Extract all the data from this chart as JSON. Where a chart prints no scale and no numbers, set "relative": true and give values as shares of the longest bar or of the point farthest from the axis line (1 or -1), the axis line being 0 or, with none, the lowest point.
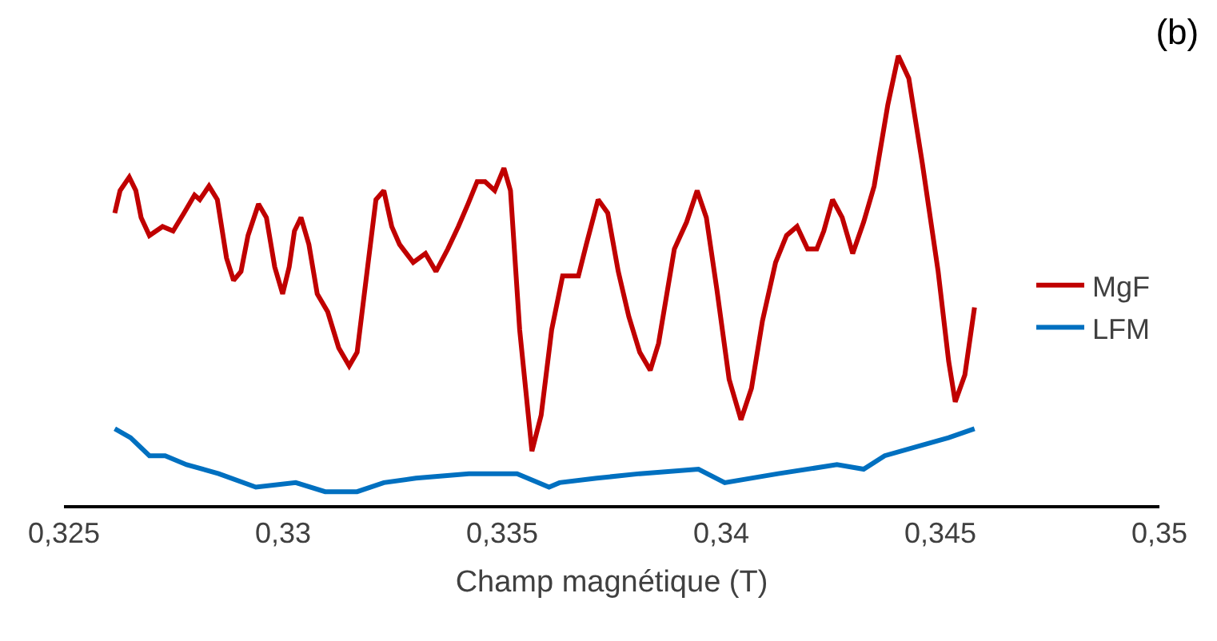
{
  "chart_data": {
    "type": "line",
    "title": "(b)",
    "xlabel": "Champ magnétique (T)",
    "relative": true,
    "legend": "right",
    "marker": "none",
    "line_style": "solid",
    "xlim": [
      0.325,
      0.35
    ],
    "xticks": [
      {
        "value": 0.325,
        "label": "0,325"
      },
      {
        "value": 0.33,
        "label": "0,33"
      },
      {
        "value": 0.335,
        "label": "0,335"
      },
      {
        "value": 0.34,
        "label": "0,34"
      },
      {
        "value": 0.345,
        "label": "0,345"
      },
      {
        "value": 0.35,
        "label": "0,35"
      }
    ],
    "series": [
      {
        "name": "MgF",
        "color": "#c00000",
        "x": [
          0.32616,
          0.32628,
          0.32649,
          0.32664,
          0.32676,
          0.32695,
          0.32725,
          0.32749,
          0.32774,
          0.32798,
          0.3281,
          0.32831,
          0.3285,
          0.32871,
          0.32887,
          0.32904,
          0.3292,
          0.32944,
          0.32962,
          0.32981,
          0.32999,
          0.33014,
          0.33026,
          0.33041,
          0.33059,
          0.33078,
          0.33102,
          0.33127,
          0.33151,
          0.33169,
          0.33193,
          0.33212,
          0.3323,
          0.33248,
          0.33266,
          0.33297,
          0.33325,
          0.33349,
          0.33376,
          0.334,
          0.33422,
          0.33443,
          0.33461,
          0.33483,
          0.33504,
          0.33519,
          0.3354,
          0.33568,
          0.33589,
          0.33613,
          0.33638,
          0.33674,
          0.33692,
          0.33719,
          0.33741,
          0.33765,
          0.33789,
          0.33814,
          0.33838,
          0.33857,
          0.33893,
          0.33921,
          0.33945,
          0.33966,
          0.3399,
          0.34018,
          0.34045,
          0.34069,
          0.34094,
          0.34124,
          0.34149,
          0.34173,
          0.34197,
          0.34218,
          0.34234,
          0.34254,
          0.34276,
          0.343,
          0.34325,
          0.34349,
          0.3438,
          0.34404,
          0.34428,
          0.34459,
          0.34495,
          0.34519,
          0.34534,
          0.34556,
          0.34578
        ],
        "values": [
          0.65,
          0.7,
          0.73,
          0.7,
          0.64,
          0.6,
          0.62,
          0.61,
          0.65,
          0.69,
          0.68,
          0.71,
          0.68,
          0.55,
          0.5,
          0.52,
          0.6,
          0.67,
          0.64,
          0.53,
          0.47,
          0.53,
          0.61,
          0.64,
          0.58,
          0.47,
          0.43,
          0.35,
          0.31,
          0.34,
          0.53,
          0.68,
          0.7,
          0.62,
          0.58,
          0.54,
          0.56,
          0.52,
          0.57,
          0.62,
          0.67,
          0.72,
          0.72,
          0.7,
          0.75,
          0.7,
          0.39,
          0.12,
          0.2,
          0.39,
          0.51,
          0.51,
          0.58,
          0.68,
          0.65,
          0.52,
          0.42,
          0.34,
          0.3,
          0.36,
          0.57,
          0.63,
          0.7,
          0.64,
          0.48,
          0.28,
          0.19,
          0.26,
          0.41,
          0.54,
          0.6,
          0.62,
          0.57,
          0.57,
          0.61,
          0.68,
          0.64,
          0.56,
          0.63,
          0.71,
          0.89,
          1.0,
          0.95,
          0.76,
          0.52,
          0.32,
          0.23,
          0.29,
          0.44
        ]
      },
      {
        "name": "LFM",
        "color": "#0070c0",
        "x": [
          0.32616,
          0.32652,
          0.32695,
          0.32731,
          0.3278,
          0.32853,
          0.32938,
          0.33029,
          0.33096,
          0.33169,
          0.3323,
          0.33303,
          0.33424,
          0.33534,
          0.33607,
          0.33631,
          0.33716,
          0.33814,
          0.33948,
          0.34008,
          0.3413,
          0.34264,
          0.34325,
          0.34373,
          0.34446,
          0.34519,
          0.34578
        ],
        "values": [
          0.17,
          0.15,
          0.11,
          0.11,
          0.09,
          0.07,
          0.04,
          0.05,
          0.03,
          0.03,
          0.05,
          0.06,
          0.07,
          0.07,
          0.04,
          0.05,
          0.06,
          0.07,
          0.08,
          0.05,
          0.07,
          0.09,
          0.08,
          0.11,
          0.13,
          0.15,
          0.17
        ]
      }
    ]
  }
}
